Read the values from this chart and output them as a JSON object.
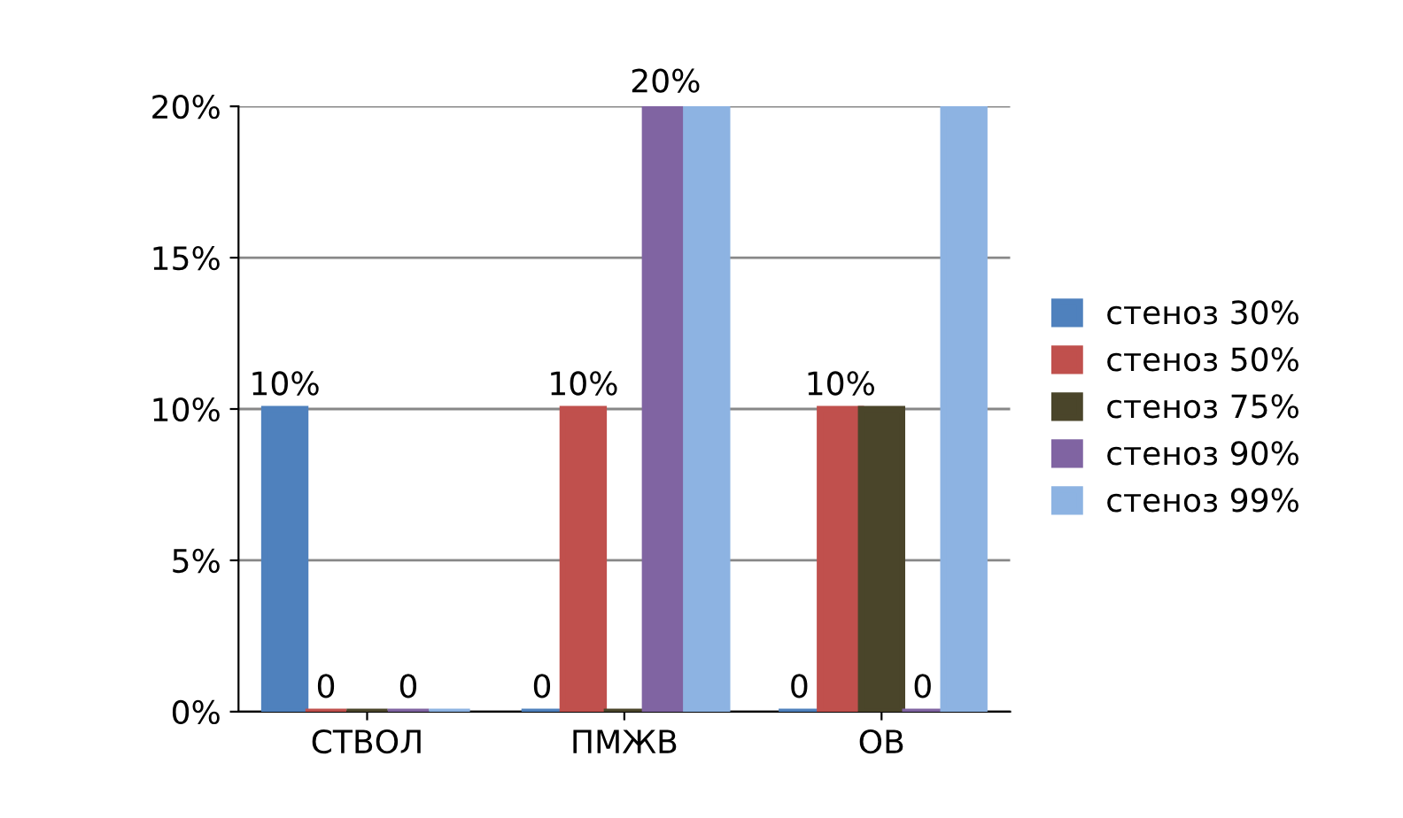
{
  "chart_data": {
    "type": "bar",
    "categories": [
      "СТВОЛ",
      "ПМЖВ",
      "ОВ"
    ],
    "series": [
      {
        "name": "стеноз 30%",
        "color": "#4f81bd",
        "values": [
          10,
          0,
          0
        ],
        "value_labels": [
          "10%",
          "0",
          "0"
        ]
      },
      {
        "name": "стеноз 50%",
        "color": "#c0504d",
        "values": [
          0,
          10,
          10
        ],
        "value_labels": [
          "0",
          "10%",
          "10%"
        ]
      },
      {
        "name": "стеноз 75%",
        "color": "#4a452a",
        "values": [
          0,
          0,
          10
        ]
      },
      {
        "name": "стеноз 90%",
        "color": "#8064a2",
        "values": [
          0,
          20,
          0
        ],
        "value_labels": [
          "0",
          "20%",
          "0"
        ]
      },
      {
        "name": "стеноз 99%",
        "color": "#8db3e2",
        "values": [
          0,
          20,
          20
        ]
      }
    ],
    "ylim": [
      0,
      20
    ],
    "yticks": [
      {
        "value": 0,
        "label": "0%"
      },
      {
        "value": 5,
        "label": "5%"
      },
      {
        "value": 10,
        "label": "10%"
      },
      {
        "value": 15,
        "label": "15%"
      },
      {
        "value": 20,
        "label": "20%"
      }
    ],
    "grid": "y",
    "legend": "right"
  }
}
